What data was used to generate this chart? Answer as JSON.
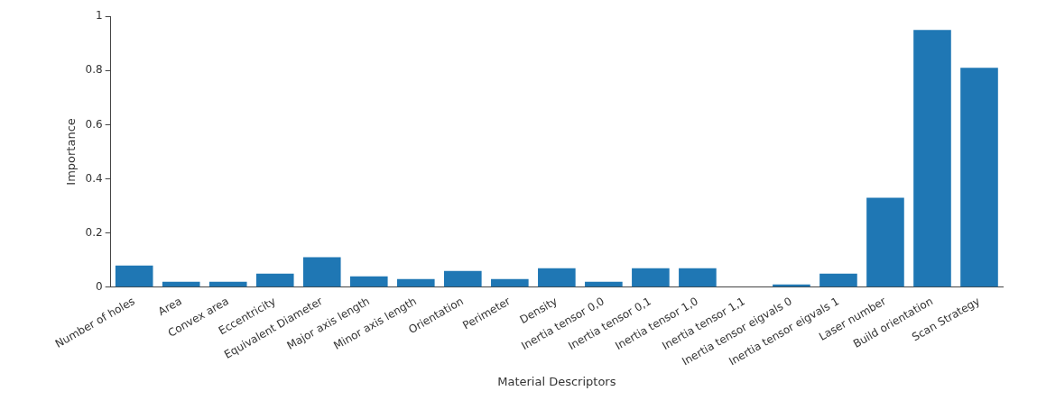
{
  "chart_data": {
    "type": "bar",
    "xlabel": "Material Descriptors",
    "ylabel": "Importance",
    "categories": [
      "Number of holes",
      "Area",
      "Convex area",
      "Eccentricity",
      "Equivalent Diameter",
      "Major axis length",
      "Minor axis length",
      "Orientation",
      "Perimeter",
      "Density",
      "Inertia tensor 0,0",
      "Inertia tensor 0,1",
      "Inertia tensor 1,0",
      "Inertia tensor 1,1",
      "Inertia tensor eigvals 0",
      "Inertia tensor eigvals 1",
      "Laser number",
      "Build orientation",
      "Scan Strategy"
    ],
    "values": [
      0.08,
      0.02,
      0.02,
      0.05,
      0.11,
      0.04,
      0.03,
      0.06,
      0.03,
      0.07,
      0.02,
      0.07,
      0.07,
      0,
      0.01,
      0.05,
      0.33,
      0.95,
      0.81
    ],
    "color": "#1f77b4",
    "ylim": [
      0,
      1
    ],
    "yticks": [
      0,
      0.2,
      0.4,
      0.6,
      0.8,
      1
    ],
    "grid": false,
    "legend": false
  }
}
